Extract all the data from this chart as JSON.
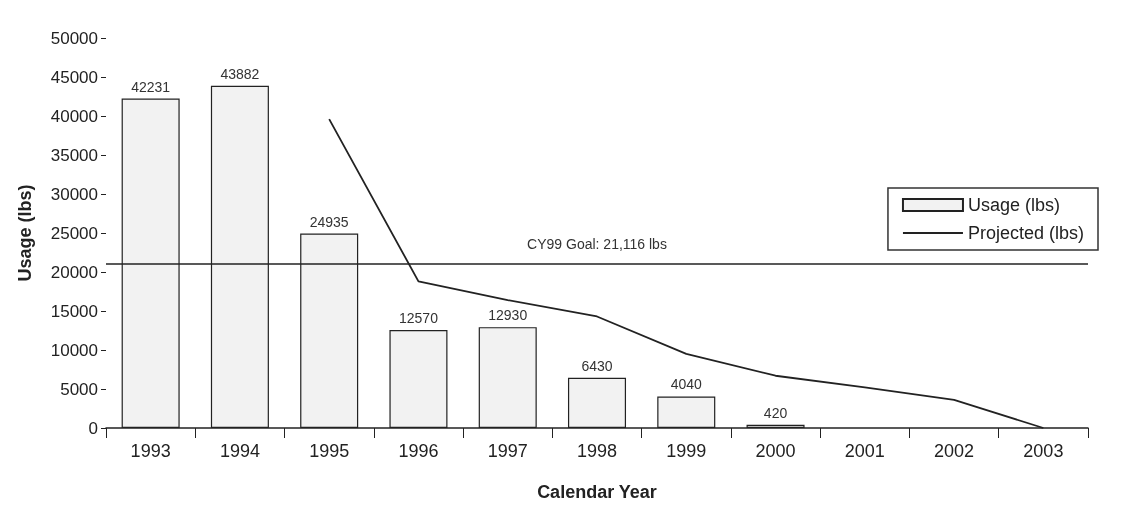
{
  "chart_data": {
    "type": "bar",
    "xlabel": "Calendar Year",
    "ylabel": "Usage (lbs)",
    "categories": [
      "1993",
      "1994",
      "1995",
      "1996",
      "1997",
      "1998",
      "1999",
      "2000",
      "2001",
      "2002",
      "2003"
    ],
    "series": [
      {
        "name": "Usage (lbs)",
        "color": "#f2f2f2",
        "values": [
          42231,
          43882,
          24935,
          12570,
          12930,
          6430,
          4040,
          420,
          null,
          null,
          null
        ],
        "value_labels": [
          "42231",
          "43882",
          "24935",
          "12570",
          "12930",
          "6430",
          "4040",
          "420",
          null,
          null,
          null
        ]
      },
      {
        "name": "Projected (lbs)",
        "type": "line",
        "color": "#222222",
        "values": [
          null,
          null,
          39600,
          18800,
          16400,
          14300,
          9500,
          6700,
          5200,
          3600,
          0
        ]
      }
    ],
    "ylim": [
      0,
      50000
    ],
    "yticks": [
      0,
      5000,
      10000,
      15000,
      20000,
      25000,
      30000,
      35000,
      40000,
      45000,
      50000
    ],
    "ref_lines": [
      {
        "axis": "y",
        "value": 21116,
        "label": "CY99 Goal: 21,116 lbs",
        "color": "#222222"
      }
    ],
    "grid": false,
    "legend": "right",
    "marker": "none",
    "line_style": "solid"
  }
}
